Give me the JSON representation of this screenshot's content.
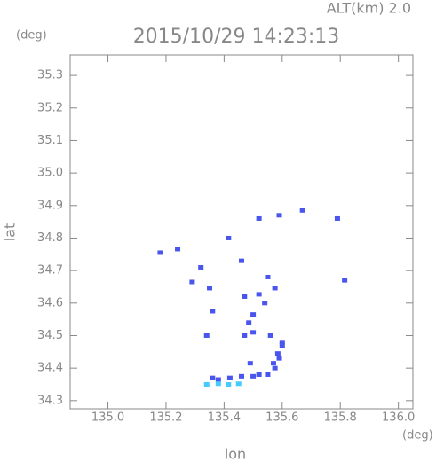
{
  "chart_data": {
    "type": "scatter",
    "title": "2015/10/29 14:23:13",
    "annotation": "ALT(km) 2.0",
    "xlabel": "lon",
    "ylabel": "lat",
    "x_unit": "(deg)",
    "y_unit": "(deg)",
    "xlim": [
      134.87,
      136.05
    ],
    "ylim": [
      34.275,
      35.363
    ],
    "xticks": [
      {
        "value": 135,
        "label": "135.0"
      },
      135.2,
      135.4,
      135.6,
      135.8,
      {
        "value": 136,
        "label": "136.0"
      }
    ],
    "yticks": [
      34.3,
      34.4,
      34.5,
      34.6,
      34.7,
      34.8,
      34.9,
      {
        "value": 35,
        "label": "35.0"
      },
      35.1,
      35.2,
      35.3
    ],
    "series": [
      {
        "color": "#4a55ee",
        "x": [
          135.18,
          135.24,
          135.29,
          135.32,
          135.35,
          135.36,
          135.34,
          135.415,
          135.46,
          135.52,
          135.59,
          135.67,
          135.79,
          135.815,
          135.55,
          135.575,
          135.52,
          135.47,
          135.5,
          135.54,
          135.485,
          135.47,
          135.5,
          135.56,
          135.6,
          135.6,
          135.585,
          135.59,
          135.57,
          135.575,
          135.49,
          135.52,
          135.5,
          135.46,
          135.42,
          135.38,
          135.36,
          135.55
        ],
        "values": [
          34.755,
          34.766,
          34.665,
          34.71,
          34.646,
          34.575,
          34.5,
          34.8,
          34.73,
          34.86,
          34.87,
          34.885,
          34.86,
          34.67,
          34.68,
          34.646,
          34.627,
          34.62,
          34.565,
          34.6,
          34.54,
          34.5,
          34.51,
          34.5,
          34.48,
          34.47,
          34.445,
          34.43,
          34.415,
          34.4,
          34.415,
          34.38,
          34.375,
          34.375,
          34.37,
          34.365,
          34.37,
          34.38
        ]
      },
      {
        "color": "#44ccff",
        "x": [
          135.34,
          135.38,
          135.415,
          135.45
        ],
        "values": [
          34.35,
          34.352,
          34.35,
          34.352
        ]
      }
    ]
  }
}
